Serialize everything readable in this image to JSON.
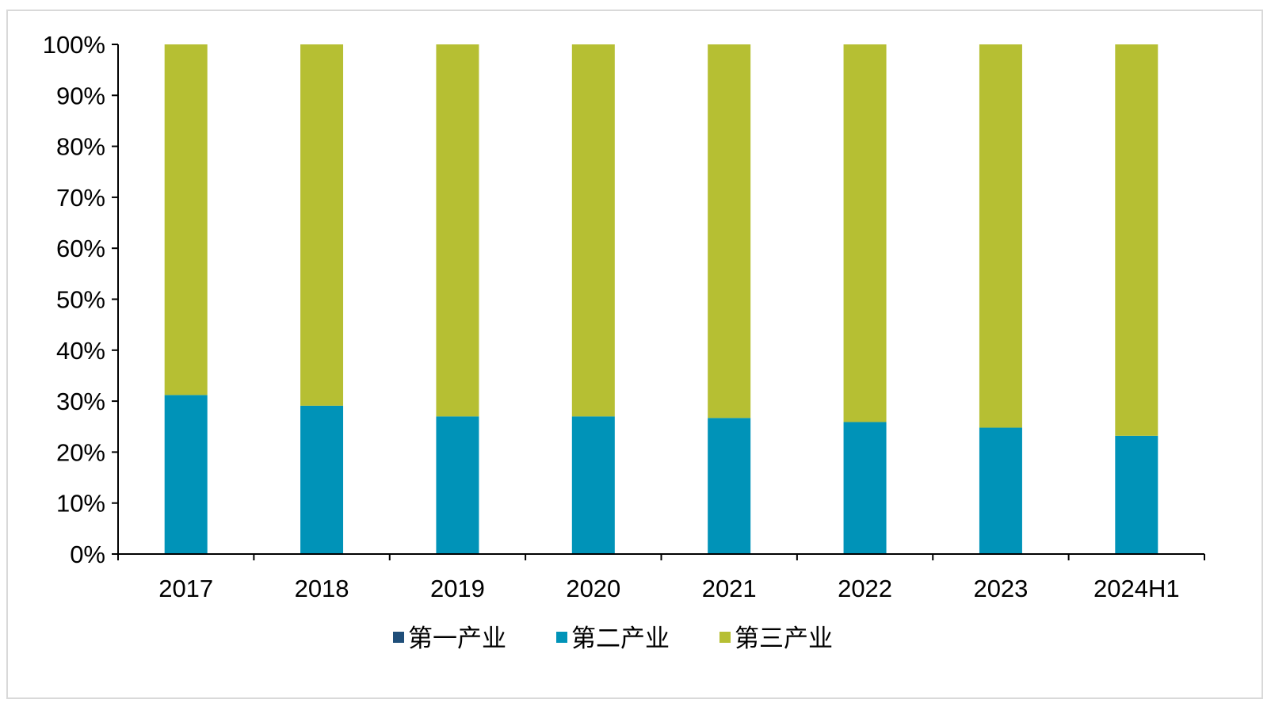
{
  "chart_data": {
    "type": "bar",
    "stacked": true,
    "categories": [
      "2017",
      "2018",
      "2019",
      "2020",
      "2021",
      "2022",
      "2023",
      "2024H1"
    ],
    "series": [
      {
        "name": "第一产业",
        "color": "#1f4e79",
        "values": [
          0.1,
          0.1,
          0.1,
          0.1,
          0.1,
          0.1,
          0.1,
          0.1
        ]
      },
      {
        "name": "第二产业",
        "color": "#0093b8",
        "values": [
          31.1,
          29.0,
          26.9,
          26.9,
          26.6,
          25.8,
          24.7,
          23.1
        ]
      },
      {
        "name": "第三产业",
        "color": "#b6bf33",
        "values": [
          68.8,
          70.9,
          73.0,
          73.0,
          73.3,
          74.1,
          75.2,
          76.8
        ]
      }
    ],
    "title": "",
    "xlabel": "",
    "ylabel": "",
    "ylim": [
      0,
      100
    ],
    "yticks": [
      "0%",
      "10%",
      "20%",
      "30%",
      "40%",
      "50%",
      "60%",
      "70%",
      "80%",
      "90%",
      "100%"
    ],
    "grid": false,
    "legend_position": "bottom"
  }
}
